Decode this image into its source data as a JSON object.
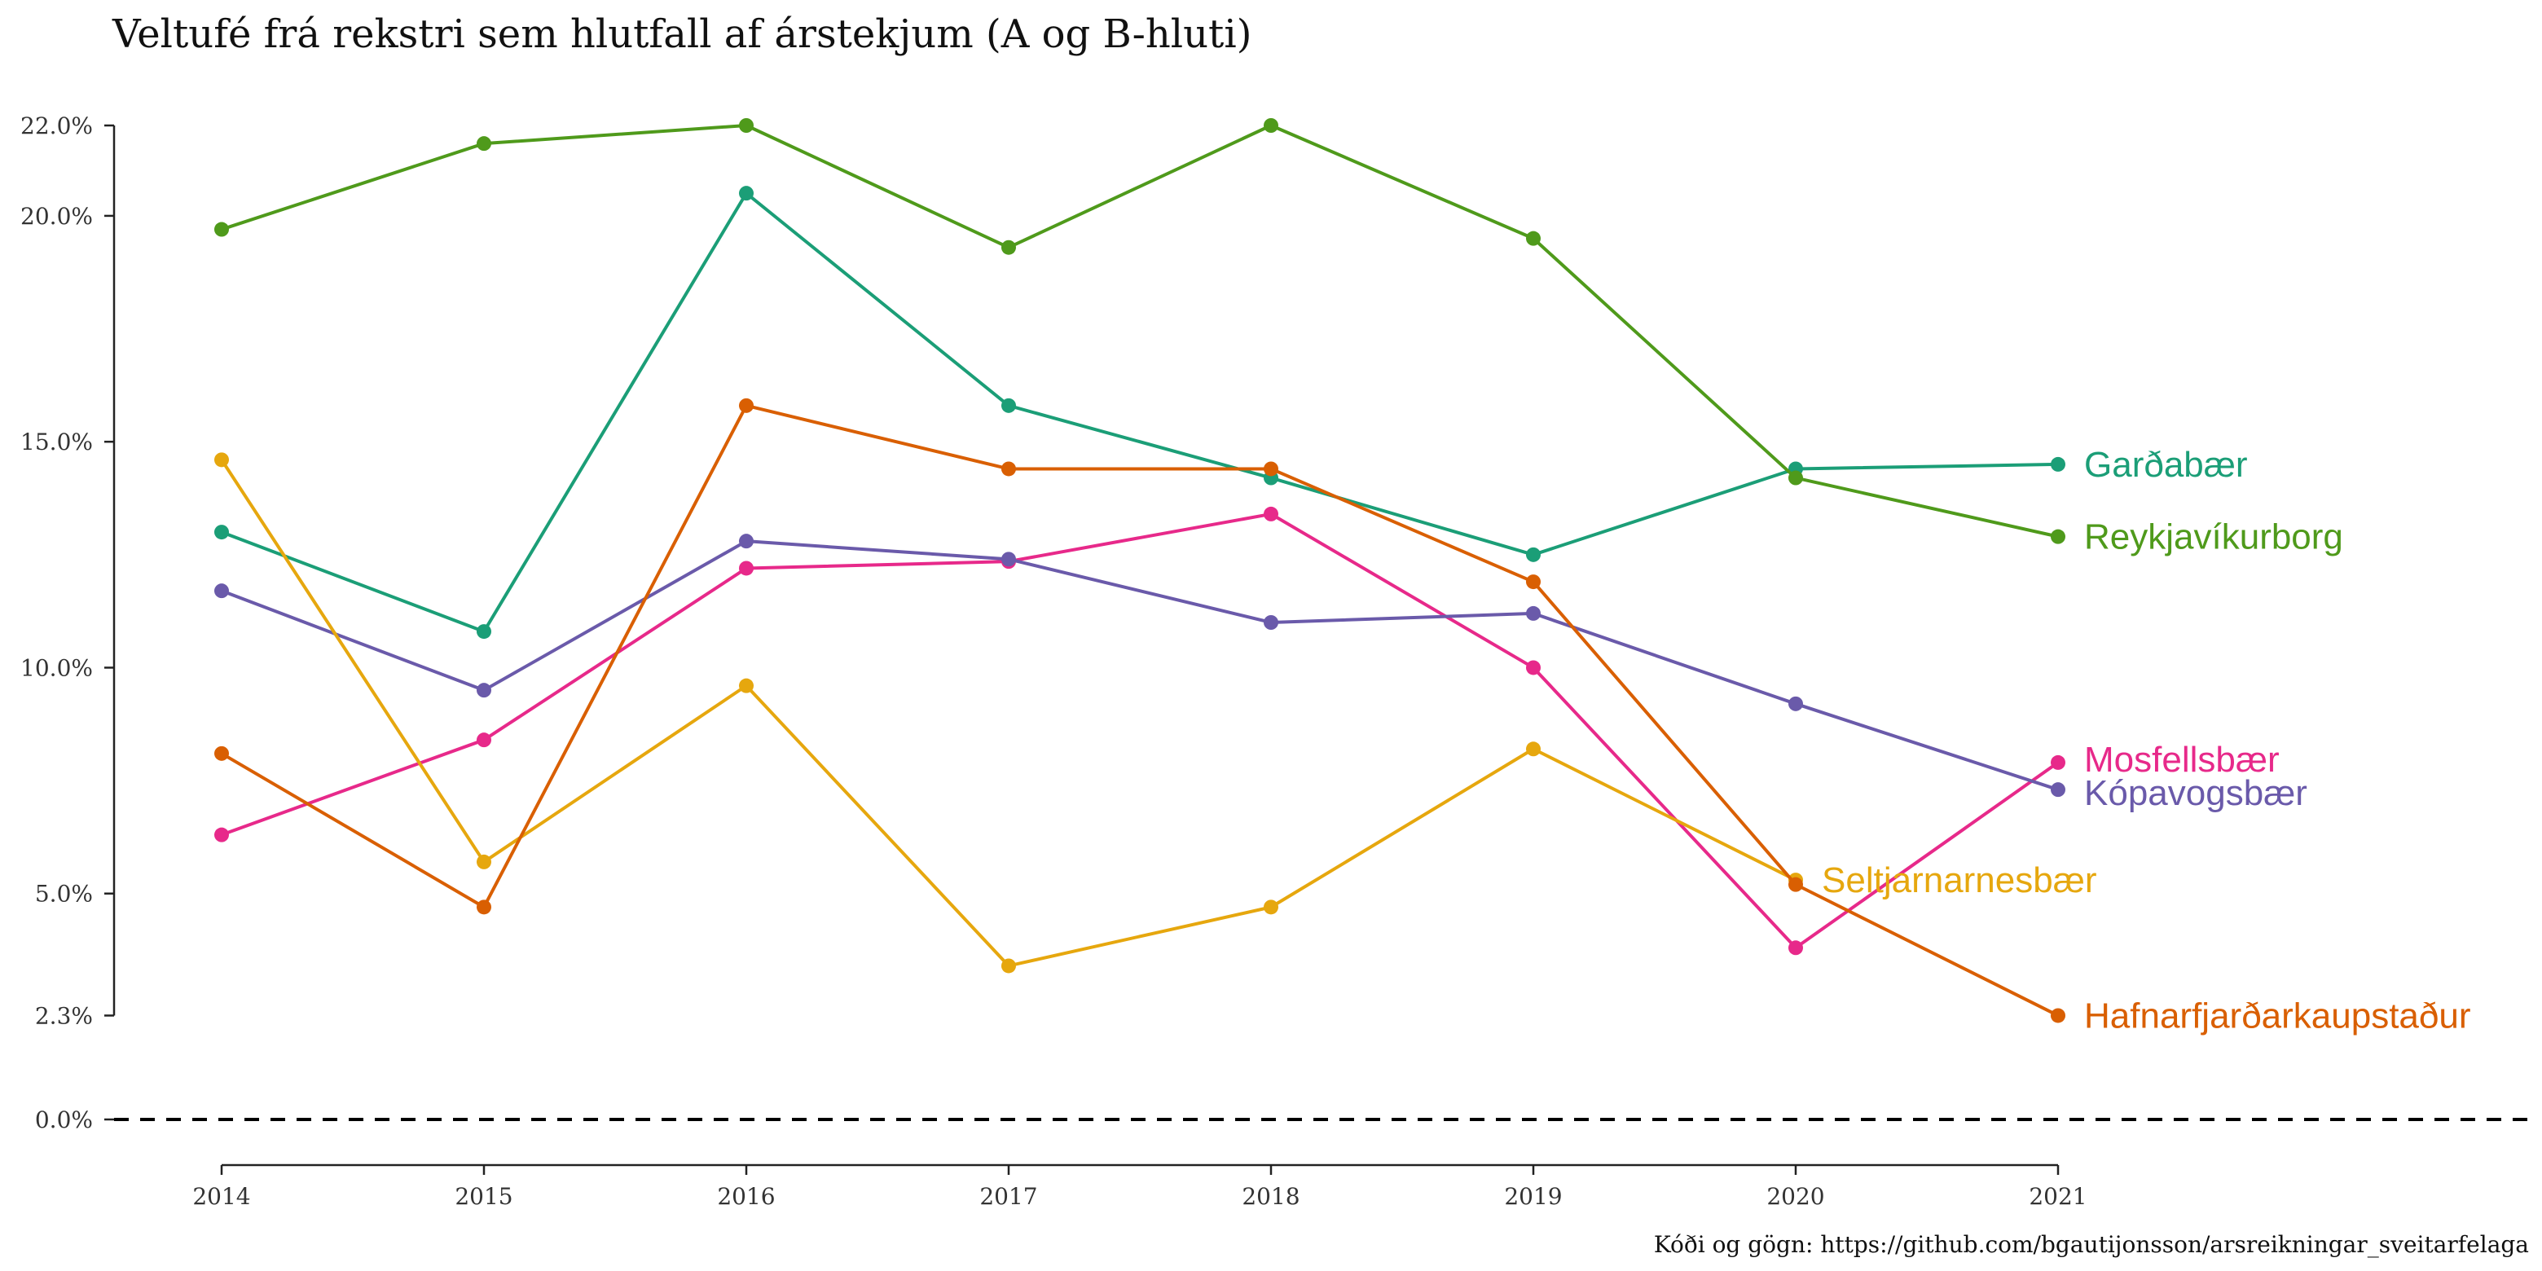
{
  "chart_data": {
    "type": "line",
    "title": "Veltufé frá rekstri sem hlutfall af árstekjum (A og B-hluti)",
    "caption": "Kóði og gögn: https://github.com/bgautijonsson/arsreikningar_sveitarfelaga",
    "xlabel": "",
    "ylabel": "",
    "x": [
      2014,
      2015,
      2016,
      2017,
      2018,
      2019,
      2020,
      2021
    ],
    "x_tick_labels": [
      "2014",
      "2015",
      "2016",
      "2017",
      "2018",
      "2019",
      "2020",
      "2021"
    ],
    "y_ticks": [
      0,
      2.3,
      5,
      10,
      15,
      20,
      22
    ],
    "y_tick_labels": [
      "0.0%",
      "2.3%",
      "5.0%",
      "10.0%",
      "15.0%",
      "20.0%",
      "22.0%"
    ],
    "ylim": [
      0,
      22
    ],
    "grid": false,
    "reference_line": {
      "y": 0,
      "style": "dashed",
      "color": "#000000"
    },
    "legend": "direct labels at line ends",
    "series": [
      {
        "name": "Garðabær",
        "color": "#1b9e77",
        "values": [
          13.0,
          10.8,
          20.5,
          15.8,
          14.2,
          12.5,
          14.4,
          14.5
        ]
      },
      {
        "name": "Reykjavíkurborg",
        "color": "#4f9a1b",
        "values": [
          19.7,
          21.6,
          22.0,
          19.3,
          22.0,
          19.5,
          14.2,
          12.9
        ]
      },
      {
        "name": "Mosfellsbær",
        "color": "#e7298a",
        "values": [
          6.3,
          8.4,
          12.2,
          12.35,
          13.4,
          10.0,
          3.8,
          7.9
        ]
      },
      {
        "name": "Kópavogsbær",
        "color": "#6a5aaa",
        "values": [
          11.7,
          9.5,
          12.8,
          12.4,
          11.0,
          11.2,
          9.2,
          7.3
        ]
      },
      {
        "name": "Seltjarnarnesbær",
        "color": "#e6a70e",
        "values": [
          14.6,
          5.7,
          9.6,
          3.4,
          4.7,
          8.2,
          5.3,
          null
        ]
      },
      {
        "name": "Hafnarfjarðarkaupstaður",
        "color": "#d95f02",
        "values": [
          8.1,
          4.7,
          15.8,
          14.4,
          14.4,
          11.9,
          5.2,
          2.3
        ]
      }
    ]
  }
}
